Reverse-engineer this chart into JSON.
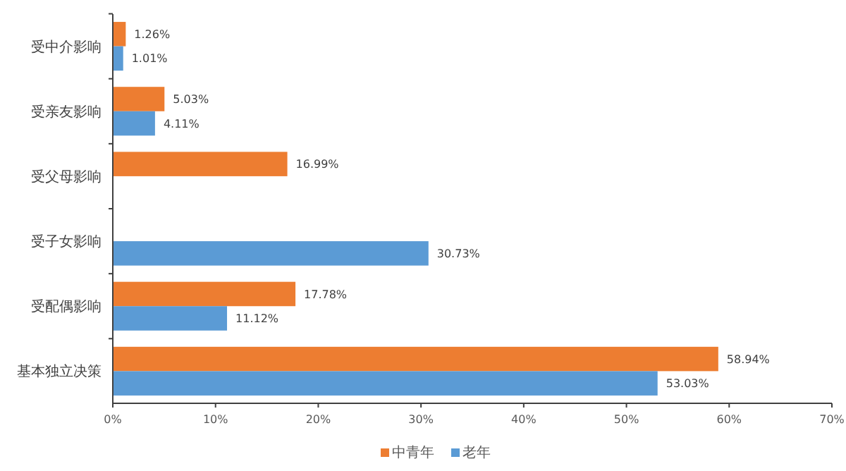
{
  "chart_data": {
    "type": "bar",
    "orientation": "horizontal",
    "categories": [
      "受中介影响",
      "受亲友影响",
      "受父母影响",
      "受子女影响",
      "受配偶影响",
      "基本独立决策"
    ],
    "series": [
      {
        "name": "中青年",
        "color": "#ed7d31",
        "values": [
          1.26,
          5.03,
          16.99,
          null,
          17.78,
          58.94
        ],
        "value_labels": [
          "1.26%",
          "5.03%",
          "16.99%",
          null,
          "17.78%",
          "58.94%"
        ]
      },
      {
        "name": "老年",
        "color": "#5b9bd5",
        "values": [
          1.01,
          4.11,
          null,
          30.73,
          11.12,
          53.03
        ],
        "value_labels": [
          "1.01%",
          "4.11%",
          null,
          "30.73%",
          "11.12%",
          "53.03%"
        ]
      }
    ],
    "xlim": [
      0,
      70
    ],
    "xticks": [
      {
        "value": 0,
        "label": "0%"
      },
      {
        "value": 10,
        "label": "10%"
      },
      {
        "value": 20,
        "label": "20%"
      },
      {
        "value": 30,
        "label": "30%"
      },
      {
        "value": 40,
        "label": "40%"
      },
      {
        "value": 50,
        "label": "50%"
      },
      {
        "value": 60,
        "label": "60%"
      },
      {
        "value": 70,
        "label": "70%"
      }
    ],
    "grid": false,
    "legend": "bottom"
  }
}
